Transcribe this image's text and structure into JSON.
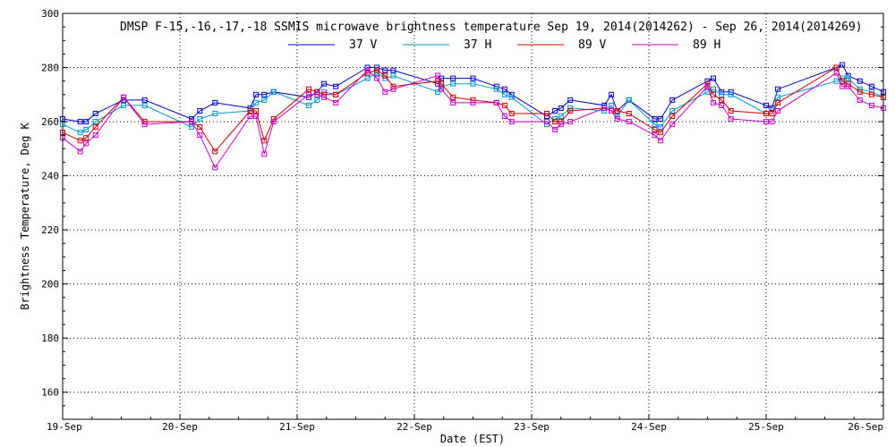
{
  "chart_data": {
    "type": "line",
    "title": "DMSP F-15,-16,-17,-18 SSMIS microwave brightness temperature Sep 19, 2014(2014262) - Sep 26, 2014(2014269)",
    "xlabel": "Date (EST)",
    "ylabel": "Brightness Temperature, Deg K",
    "xlim": [
      0,
      7
    ],
    "ylim": [
      150,
      300
    ],
    "grid": true,
    "legend_position": "top",
    "x_ticks": [
      {
        "value": 0,
        "label": "19-Sep"
      },
      {
        "value": 1,
        "label": "20-Sep"
      },
      {
        "value": 2,
        "label": "21-Sep"
      },
      {
        "value": 3,
        "label": "22-Sep"
      },
      {
        "value": 4,
        "label": "23-Sep"
      },
      {
        "value": 5,
        "label": "24-Sep"
      },
      {
        "value": 6,
        "label": "25-Sep"
      },
      {
        "value": 7,
        "label": "26-Sep"
      }
    ],
    "y_ticks": [
      {
        "value": 160,
        "label": "160"
      },
      {
        "value": 180,
        "label": "180"
      },
      {
        "value": 200,
        "label": "200"
      },
      {
        "value": 220,
        "label": "220"
      },
      {
        "value": 240,
        "label": "240"
      },
      {
        "value": 260,
        "label": "260"
      },
      {
        "value": 280,
        "label": "280"
      },
      {
        "value": 300,
        "label": "300"
      }
    ],
    "series": [
      {
        "name": "37 V",
        "color": "#0000c8",
        "points": [
          [
            0.0,
            261
          ],
          [
            0.15,
            260
          ],
          [
            0.2,
            260
          ],
          [
            0.28,
            263
          ],
          [
            0.52,
            268
          ],
          [
            0.7,
            268
          ],
          [
            1.1,
            261
          ],
          [
            1.17,
            264
          ],
          [
            1.3,
            267
          ],
          [
            1.6,
            265
          ],
          [
            1.65,
            270
          ],
          [
            1.72,
            270
          ],
          [
            1.8,
            271
          ],
          [
            2.1,
            269
          ],
          [
            2.17,
            271
          ],
          [
            2.23,
            274
          ],
          [
            2.33,
            273
          ],
          [
            2.6,
            280
          ],
          [
            2.68,
            280
          ],
          [
            2.75,
            279
          ],
          [
            2.82,
            279
          ],
          [
            3.2,
            274
          ],
          [
            3.23,
            276
          ],
          [
            3.33,
            276
          ],
          [
            3.5,
            276
          ],
          [
            3.7,
            273
          ],
          [
            3.77,
            272
          ],
          [
            3.83,
            270
          ],
          [
            4.13,
            262
          ],
          [
            4.2,
            264
          ],
          [
            4.25,
            265
          ],
          [
            4.33,
            268
          ],
          [
            4.62,
            266
          ],
          [
            4.68,
            270
          ],
          [
            4.73,
            264
          ],
          [
            4.83,
            268
          ],
          [
            5.05,
            261
          ],
          [
            5.1,
            261
          ],
          [
            5.2,
            268
          ],
          [
            5.5,
            275
          ],
          [
            5.55,
            276
          ],
          [
            5.62,
            271
          ],
          [
            5.7,
            271
          ],
          [
            6.0,
            266
          ],
          [
            6.05,
            265
          ],
          [
            6.1,
            272
          ],
          [
            6.6,
            280
          ],
          [
            6.65,
            281
          ],
          [
            6.7,
            277
          ],
          [
            6.8,
            275
          ],
          [
            6.9,
            273
          ],
          [
            7.0,
            271
          ]
        ]
      },
      {
        "name": "37 H",
        "color": "#0096c8",
        "points": [
          [
            0.0,
            259
          ],
          [
            0.15,
            256
          ],
          [
            0.2,
            257
          ],
          [
            0.28,
            260
          ],
          [
            0.52,
            266
          ],
          [
            0.7,
            266
          ],
          [
            1.1,
            258
          ],
          [
            1.17,
            261
          ],
          [
            1.3,
            263
          ],
          [
            1.6,
            264
          ],
          [
            1.65,
            267
          ],
          [
            1.72,
            268
          ],
          [
            1.8,
            271
          ],
          [
            2.1,
            266
          ],
          [
            2.17,
            268
          ],
          [
            2.23,
            271
          ],
          [
            2.33,
            270
          ],
          [
            2.6,
            276
          ],
          [
            2.68,
            278
          ],
          [
            2.75,
            276
          ],
          [
            2.82,
            277
          ],
          [
            3.2,
            271
          ],
          [
            3.23,
            273
          ],
          [
            3.33,
            274
          ],
          [
            3.5,
            274
          ],
          [
            3.7,
            272
          ],
          [
            3.77,
            270
          ],
          [
            3.83,
            269
          ],
          [
            4.13,
            259
          ],
          [
            4.2,
            261
          ],
          [
            4.25,
            262
          ],
          [
            4.33,
            265
          ],
          [
            4.62,
            264
          ],
          [
            4.68,
            266
          ],
          [
            4.73,
            262
          ],
          [
            4.83,
            268
          ],
          [
            5.05,
            259
          ],
          [
            5.1,
            258
          ],
          [
            5.2,
            264
          ],
          [
            5.5,
            271
          ],
          [
            5.55,
            272
          ],
          [
            5.62,
            270
          ],
          [
            5.7,
            270
          ],
          [
            6.0,
            263
          ],
          [
            6.05,
            263
          ],
          [
            6.1,
            269
          ],
          [
            6.6,
            275
          ],
          [
            6.65,
            276
          ],
          [
            6.7,
            276
          ],
          [
            6.8,
            272
          ],
          [
            6.9,
            271
          ],
          [
            7.0,
            269
          ]
        ]
      },
      {
        "name": "89 V",
        "color": "#c80000",
        "points": [
          [
            0.0,
            256
          ],
          [
            0.15,
            253
          ],
          [
            0.2,
            254
          ],
          [
            0.28,
            258
          ],
          [
            0.52,
            269
          ],
          [
            0.7,
            260
          ],
          [
            1.1,
            260
          ],
          [
            1.17,
            258
          ],
          [
            1.3,
            249
          ],
          [
            1.6,
            264
          ],
          [
            1.65,
            264
          ],
          [
            1.72,
            253
          ],
          [
            1.8,
            261
          ],
          [
            2.1,
            272
          ],
          [
            2.17,
            271
          ],
          [
            2.23,
            270
          ],
          [
            2.33,
            270
          ],
          [
            2.6,
            278
          ],
          [
            2.68,
            279
          ],
          [
            2.75,
            277
          ],
          [
            2.82,
            273
          ],
          [
            3.2,
            275
          ],
          [
            3.23,
            274
          ],
          [
            3.33,
            269
          ],
          [
            3.5,
            268
          ],
          [
            3.7,
            267
          ],
          [
            3.77,
            266
          ],
          [
            3.83,
            263
          ],
          [
            4.13,
            263
          ],
          [
            4.2,
            260
          ],
          [
            4.25,
            260
          ],
          [
            4.33,
            264
          ],
          [
            4.62,
            265
          ],
          [
            4.68,
            264
          ],
          [
            4.73,
            264
          ],
          [
            4.83,
            263
          ],
          [
            5.05,
            257
          ],
          [
            5.1,
            256
          ],
          [
            5.2,
            262
          ],
          [
            5.5,
            274
          ],
          [
            5.55,
            270
          ],
          [
            5.62,
            268
          ],
          [
            5.7,
            264
          ],
          [
            6.0,
            263
          ],
          [
            6.05,
            263
          ],
          [
            6.1,
            267
          ],
          [
            6.6,
            280
          ],
          [
            6.65,
            275
          ],
          [
            6.7,
            274
          ],
          [
            6.8,
            271
          ],
          [
            6.9,
            270
          ],
          [
            7.0,
            269
          ]
        ]
      },
      {
        "name": "89 H",
        "color": "#c800c8",
        "points": [
          [
            0.0,
            254
          ],
          [
            0.15,
            249
          ],
          [
            0.2,
            252
          ],
          [
            0.28,
            255
          ],
          [
            0.52,
            269
          ],
          [
            0.7,
            259
          ],
          [
            1.1,
            260
          ],
          [
            1.17,
            255
          ],
          [
            1.3,
            243
          ],
          [
            1.6,
            262
          ],
          [
            1.65,
            262
          ],
          [
            1.72,
            248
          ],
          [
            1.8,
            260
          ],
          [
            2.1,
            270
          ],
          [
            2.17,
            270
          ],
          [
            2.23,
            269
          ],
          [
            2.33,
            267
          ],
          [
            2.6,
            279
          ],
          [
            2.68,
            276
          ],
          [
            2.75,
            271
          ],
          [
            2.82,
            272
          ],
          [
            3.2,
            277
          ],
          [
            3.23,
            272
          ],
          [
            3.33,
            267
          ],
          [
            3.5,
            267
          ],
          [
            3.7,
            267
          ],
          [
            3.77,
            262
          ],
          [
            3.83,
            260
          ],
          [
            4.13,
            260
          ],
          [
            4.2,
            257
          ],
          [
            4.25,
            259
          ],
          [
            4.33,
            260
          ],
          [
            4.62,
            265
          ],
          [
            4.68,
            264
          ],
          [
            4.73,
            261
          ],
          [
            4.83,
            260
          ],
          [
            5.05,
            255
          ],
          [
            5.1,
            253
          ],
          [
            5.2,
            259
          ],
          [
            5.5,
            273
          ],
          [
            5.55,
            267
          ],
          [
            5.62,
            266
          ],
          [
            5.7,
            261
          ],
          [
            6.0,
            260
          ],
          [
            6.05,
            260
          ],
          [
            6.1,
            264
          ],
          [
            6.6,
            278
          ],
          [
            6.65,
            273
          ],
          [
            6.7,
            273
          ],
          [
            6.8,
            268
          ],
          [
            6.9,
            266
          ],
          [
            7.0,
            265
          ]
        ]
      }
    ]
  }
}
